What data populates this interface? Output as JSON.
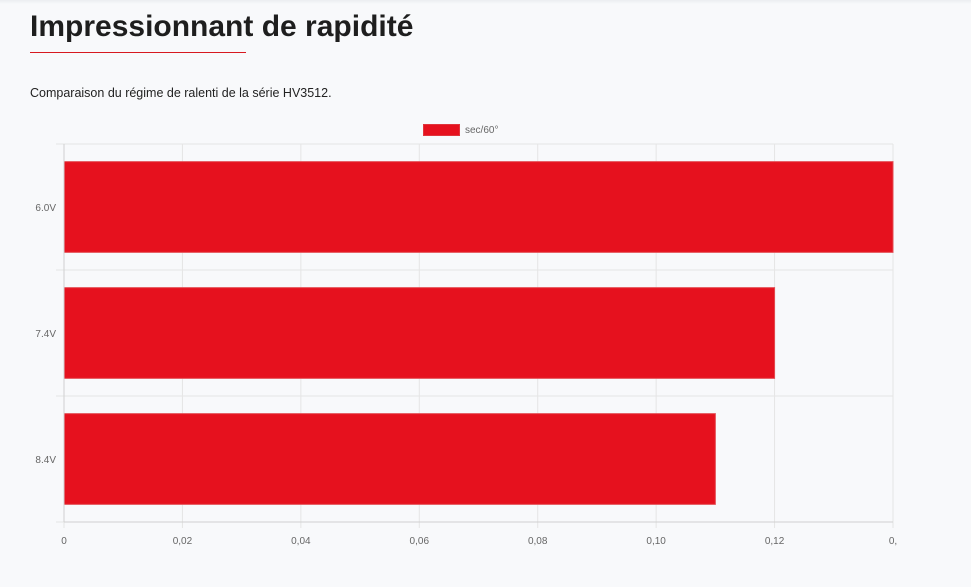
{
  "page": {
    "title": "Impressionnant de rapidité",
    "subtitle": "Comparaison du régime de ralenti de la série HV3512."
  },
  "chart_data": {
    "type": "bar",
    "orientation": "horizontal",
    "categories": [
      "6.0V",
      "7.4V",
      "8.4V"
    ],
    "series": [
      {
        "name": "sec/60°",
        "values": [
          0.14,
          0.12,
          0.11
        ],
        "color": "#e6111e"
      }
    ],
    "x_ticks": [
      "0",
      "0,02",
      "0,04",
      "0,06",
      "0,08",
      "0,10",
      "0,12",
      "0,"
    ],
    "xlim": [
      0,
      0.14
    ],
    "grid": true,
    "legend_position": "top-center"
  },
  "colors": {
    "accent": "#d71920",
    "bar": "#e6111e",
    "grid": "#e5e5e5"
  }
}
